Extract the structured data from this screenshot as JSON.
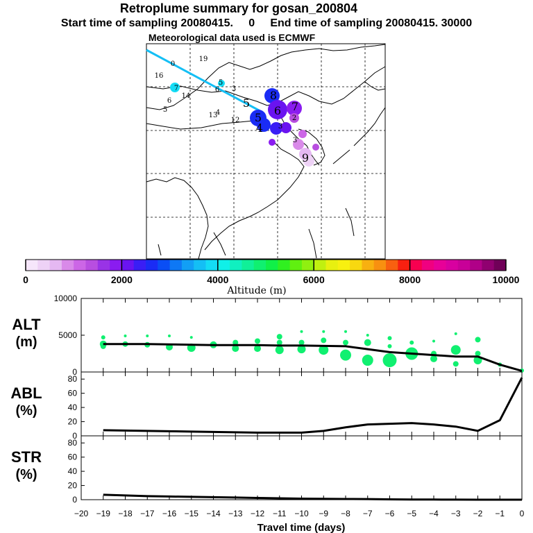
{
  "header": {
    "title": "Retroplume summary for gosan_200804",
    "subtitle": "Start time of sampling 20080415.     0     End time of sampling 20080415. 30000",
    "met_line": "Meteorological data used is ECMWF"
  },
  "colorbar": {
    "label": "Altitude (m)",
    "ticks": [
      "0",
      "2000",
      "4000",
      "6000",
      "8000",
      "10000"
    ],
    "colors": [
      "#f6e6fb",
      "#eed2f6",
      "#e5b8f2",
      "#d98ae9",
      "#cc66e6",
      "#b84ee0",
      "#9933e6",
      "#8a1cf0",
      "#6a14f0",
      "#3a1ef5",
      "#1a2cf5",
      "#0a4ef5",
      "#0e78f5",
      "#129ff5",
      "#14bff5",
      "#14dcf5",
      "#10f0e8",
      "#10f0c0",
      "#10f098",
      "#10f070",
      "#10f048",
      "#30f020",
      "#60f010",
      "#90f010",
      "#c0f010",
      "#e8f010",
      "#f8f010",
      "#f8d810",
      "#f8b010",
      "#f89010",
      "#f86010",
      "#f82010",
      "#f80050",
      "#f00080",
      "#e80098",
      "#d800a0",
      "#c80098",
      "#b00088",
      "#900070",
      "#700058"
    ]
  },
  "map": {
    "numbers": [
      {
        "t": "19",
        "c": "#14dcf5"
      },
      {
        "t": "0",
        "c": "#14dcf5"
      },
      {
        "t": "16",
        "c": "#14dcf5"
      },
      {
        "t": "7",
        "c": "#14dcf5"
      },
      {
        "t": "14",
        "c": "#14dcf5"
      },
      {
        "t": "6",
        "c": "#14dcf5"
      },
      {
        "t": "5",
        "c": "#14dcf5"
      },
      {
        "t": "5",
        "c": "#14dcf5"
      },
      {
        "t": "6",
        "c": "#14dcf5"
      },
      {
        "t": "3",
        "c": "#14dcf5"
      },
      {
        "t": "4",
        "c": "#14dcf5"
      },
      {
        "t": "13",
        "c": "#14dcf5"
      },
      {
        "t": "12",
        "c": "#14dcf5"
      },
      {
        "t": "5",
        "c": "#14dcf5"
      },
      {
        "t": "8",
        "c": "#1a2cf5"
      },
      {
        "t": "6",
        "c": "#6a14f0"
      },
      {
        "t": "7",
        "c": "#8a1cf0"
      },
      {
        "t": "5",
        "c": "#1a2cf5"
      },
      {
        "t": "4",
        "c": "#1a2cf5"
      },
      {
        "t": "2",
        "c": "#cc66e6"
      },
      {
        "t": "3",
        "c": "#cc66e6"
      },
      {
        "t": "3",
        "c": "#d98ae9"
      },
      {
        "t": "9",
        "c": "#e5b8f2"
      }
    ]
  },
  "chart_data": [
    {
      "type": "scatter+line",
      "panel": "ALT",
      "ylabel": "ALT\n(m)",
      "ylim": [
        0,
        10000
      ],
      "yticks": [
        "0",
        "5000",
        "10000"
      ],
      "x": [
        -19,
        -18,
        -17,
        -16,
        -15,
        -14,
        -13,
        -12,
        -11,
        -10,
        -9,
        -8,
        -7,
        -6,
        -5,
        -4,
        -3,
        -2,
        -1,
        0
      ],
      "line_values": [
        3800,
        3800,
        3800,
        3750,
        3700,
        3650,
        3650,
        3650,
        3600,
        3600,
        3550,
        3500,
        3100,
        2700,
        2500,
        2300,
        2100,
        2100,
        1000,
        150
      ],
      "points": [
        {
          "x": -19,
          "y": 4700,
          "s": 3
        },
        {
          "x": -19,
          "y": 3800,
          "s": 5
        },
        {
          "x": -19,
          "y": 3500,
          "s": 4
        },
        {
          "x": -18,
          "y": 4900,
          "s": 2
        },
        {
          "x": -18,
          "y": 3800,
          "s": 4
        },
        {
          "x": -17,
          "y": 4900,
          "s": 2
        },
        {
          "x": -17,
          "y": 3700,
          "s": 4
        },
        {
          "x": -16,
          "y": 4900,
          "s": 2
        },
        {
          "x": -16,
          "y": 3400,
          "s": 5
        },
        {
          "x": -15,
          "y": 4700,
          "s": 2
        },
        {
          "x": -15,
          "y": 3300,
          "s": 6
        },
        {
          "x": -14,
          "y": 3700,
          "s": 5
        },
        {
          "x": -13,
          "y": 4000,
          "s": 4
        },
        {
          "x": -13,
          "y": 3200,
          "s": 5
        },
        {
          "x": -12,
          "y": 4200,
          "s": 4
        },
        {
          "x": -12,
          "y": 3200,
          "s": 5
        },
        {
          "x": -11,
          "y": 4800,
          "s": 4
        },
        {
          "x": -11,
          "y": 4000,
          "s": 4
        },
        {
          "x": -11,
          "y": 3000,
          "s": 6
        },
        {
          "x": -10,
          "y": 5500,
          "s": 2
        },
        {
          "x": -10,
          "y": 4000,
          "s": 4
        },
        {
          "x": -10,
          "y": 3100,
          "s": 6
        },
        {
          "x": -9,
          "y": 5500,
          "s": 2
        },
        {
          "x": -9,
          "y": 4300,
          "s": 4
        },
        {
          "x": -9,
          "y": 3000,
          "s": 7
        },
        {
          "x": -8,
          "y": 5500,
          "s": 2
        },
        {
          "x": -8,
          "y": 4000,
          "s": 4
        },
        {
          "x": -8,
          "y": 2300,
          "s": 8
        },
        {
          "x": -7,
          "y": 5000,
          "s": 2
        },
        {
          "x": -7,
          "y": 4000,
          "s": 5
        },
        {
          "x": -7,
          "y": 1600,
          "s": 8
        },
        {
          "x": -6,
          "y": 4600,
          "s": 3
        },
        {
          "x": -6,
          "y": 3500,
          "s": 3
        },
        {
          "x": -6,
          "y": 1600,
          "s": 10
        },
        {
          "x": -5,
          "y": 4000,
          "s": 3
        },
        {
          "x": -5,
          "y": 2500,
          "s": 9
        },
        {
          "x": -4,
          "y": 4200,
          "s": 2
        },
        {
          "x": -4,
          "y": 2500,
          "s": 4
        },
        {
          "x": -4,
          "y": 1800,
          "s": 5
        },
        {
          "x": -3,
          "y": 5200,
          "s": 2
        },
        {
          "x": -3,
          "y": 3000,
          "s": 7
        },
        {
          "x": -3,
          "y": 1100,
          "s": 4
        },
        {
          "x": -2,
          "y": 4400,
          "s": 4
        },
        {
          "x": -2,
          "y": 2500,
          "s": 4
        },
        {
          "x": -2,
          "y": 1600,
          "s": 6
        },
        {
          "x": -1,
          "y": 1000,
          "s": 3
        },
        {
          "x": 0,
          "y": 200,
          "s": 3
        }
      ],
      "point_color": "#10f070"
    },
    {
      "type": "line",
      "panel": "ABL",
      "ylabel": "ABL\n(%)",
      "ylim": [
        0,
        90
      ],
      "yticks": [
        "0",
        "20",
        "40",
        "60",
        "80"
      ],
      "x": [
        -19,
        -18,
        -17,
        -16,
        -15,
        -14,
        -13,
        -12,
        -11,
        -10,
        -9,
        -8,
        -7,
        -6,
        -5,
        -4,
        -3,
        -2,
        -1,
        0
      ],
      "values": [
        8,
        7.5,
        7,
        6.5,
        6,
        5.5,
        5,
        4.5,
        4.5,
        4.5,
        7,
        12,
        16,
        17,
        18,
        16,
        13,
        7,
        22,
        82
      ]
    },
    {
      "type": "line",
      "panel": "STR",
      "ylabel": "STR\n(%)",
      "ylim": [
        0,
        90
      ],
      "yticks": [
        "0",
        "20",
        "40",
        "60",
        "80"
      ],
      "x": [
        -19,
        -18,
        -17,
        -16,
        -15,
        -14,
        -13,
        -12,
        -11,
        -10,
        -9,
        -8,
        -7,
        -6,
        -5,
        -4,
        -3,
        -2,
        -1,
        0
      ],
      "values": [
        7,
        6,
        5,
        4.5,
        4,
        3.5,
        3,
        2.5,
        2,
        1.5,
        1.2,
        1,
        0.8,
        0.5,
        0.3,
        0.2,
        0.1,
        0,
        0,
        0
      ]
    }
  ],
  "xaxis": {
    "label": "Travel time (days)",
    "ticks": [
      "-20",
      "-19",
      "-18",
      "-17",
      "-16",
      "-15",
      "-14",
      "-13",
      "-12",
      "-11",
      "-10",
      "-9",
      "-8",
      "-7",
      "-6",
      "-5",
      "-4",
      "-3",
      "-2",
      "-1",
      "0"
    ]
  }
}
